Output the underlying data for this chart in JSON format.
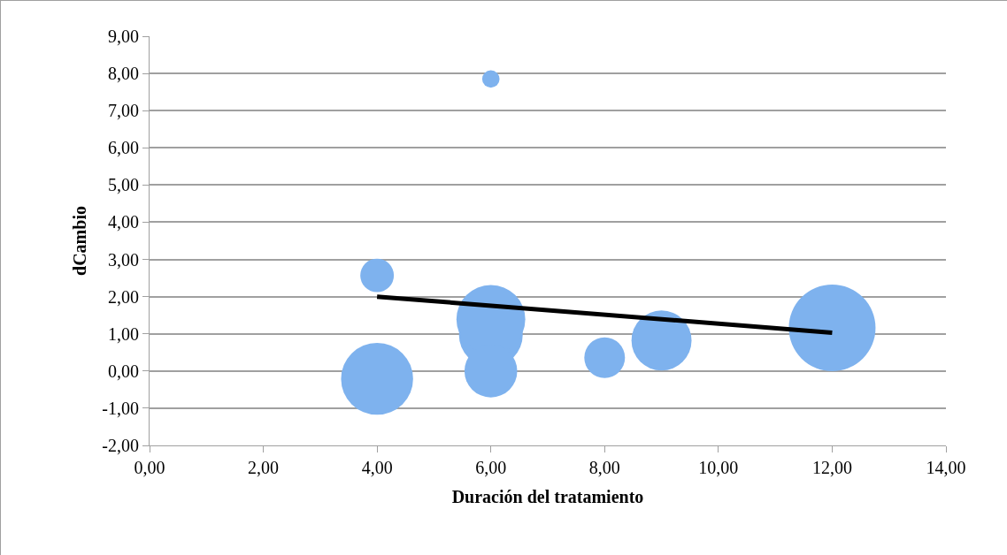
{
  "chart_data": {
    "type": "bubble",
    "xlabel": "Duración del tratamiento",
    "ylabel": "dCambio",
    "xlim": [
      0,
      14
    ],
    "ylim": [
      -2,
      9
    ],
    "xticks": [
      {
        "value": 0,
        "label": "0,00"
      },
      {
        "value": 2,
        "label": "2,00"
      },
      {
        "value": 4,
        "label": "4,00"
      },
      {
        "value": 6,
        "label": "6,00"
      },
      {
        "value": 8,
        "label": "8,00"
      },
      {
        "value": 10,
        "label": "10,00"
      },
      {
        "value": 12,
        "label": "12,00"
      },
      {
        "value": 14,
        "label": "14,00"
      }
    ],
    "yticks": [
      {
        "value": -2,
        "label": "-2,00"
      },
      {
        "value": -1,
        "label": "-1,00"
      },
      {
        "value": 0,
        "label": "0,00"
      },
      {
        "value": 1,
        "label": "1,00"
      },
      {
        "value": 2,
        "label": "2,00"
      },
      {
        "value": 3,
        "label": "3,00"
      },
      {
        "value": 4,
        "label": "4,00"
      },
      {
        "value": 5,
        "label": "5,00"
      },
      {
        "value": 6,
        "label": "6,00"
      },
      {
        "value": 7,
        "label": "7,00"
      },
      {
        "value": 8,
        "label": "8,00"
      },
      {
        "value": 9,
        "label": "9,00"
      }
    ],
    "grid": "y",
    "series": [
      {
        "color": "#7eb2ee",
        "x": [
          4,
          4,
          6,
          6,
          6,
          6,
          8,
          9,
          12
        ],
        "values": [
          2.57,
          -0.21,
          7.85,
          0.97,
          1.39,
          0.0,
          0.36,
          0.82,
          1.16
        ],
        "sizes": [
          0.15,
          0.69,
          0.04,
          0.54,
          0.63,
          0.37,
          0.22,
          0.48,
          1
        ]
      },
      {
        "type": "line",
        "color": "#000000",
        "x": [
          4,
          12
        ],
        "values": [
          2.0,
          1.03
        ],
        "line_style": "solid",
        "marker": "none"
      }
    ]
  }
}
